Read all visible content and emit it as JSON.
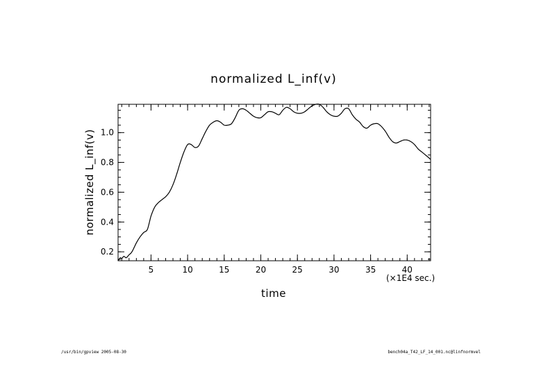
{
  "chart_data": {
    "type": "line",
    "title": "normalized L_inf(v)",
    "xlabel": "time",
    "ylabel": "normalized L_inf(v)",
    "x_unit_label": "(×1E4 sec.)",
    "xlim": [
      0.5,
      43.2
    ],
    "ylim": [
      0.14,
      1.19
    ],
    "x_ticks": [
      5,
      10,
      15,
      20,
      25,
      30,
      35,
      40
    ],
    "x_tick_labels": [
      "5",
      "10",
      "15",
      "20",
      "25",
      "30",
      "35",
      "40"
    ],
    "x_minor_step": 1,
    "y_ticks": [
      0.2,
      0.4,
      0.6,
      0.8,
      1.0
    ],
    "y_tick_labels": [
      "0.2",
      "0.4",
      "0.6",
      "0.8",
      "1.0"
    ],
    "y_minor_step": 0.05,
    "grid": false,
    "series": [
      {
        "x": [
          0.5,
          0.8,
          1.0,
          1.3,
          1.6,
          2.0,
          2.4,
          3.0,
          3.5,
          4.0,
          4.5,
          5.0,
          5.5,
          6.0,
          6.5,
          7.0,
          7.5,
          8.0,
          8.5,
          9.0,
          9.5,
          10.0,
          10.5,
          11.0,
          11.5,
          12.0,
          12.5,
          13.0,
          13.5,
          14.0,
          14.5,
          15.0,
          15.5,
          16.0,
          16.5,
          17.0,
          17.5,
          18.0,
          18.5,
          19.0,
          19.5,
          20.0,
          20.5,
          21.0,
          21.5,
          22.0,
          22.5,
          23.0,
          23.5,
          24.0,
          24.5,
          25.0,
          25.5,
          26.0,
          26.5,
          27.0,
          27.5,
          28.0,
          28.5,
          29.0,
          29.5,
          30.0,
          30.5,
          31.0,
          31.5,
          32.0,
          32.5,
          33.0,
          33.5,
          34.0,
          34.5,
          35.0,
          35.5,
          36.0,
          36.5,
          37.0,
          37.5,
          38.0,
          38.5,
          39.0,
          39.5,
          40.0,
          40.5,
          41.0,
          41.5,
          42.0,
          42.5,
          43.2
        ],
        "y": [
          0.14,
          0.16,
          0.155,
          0.17,
          0.16,
          0.18,
          0.2,
          0.26,
          0.3,
          0.33,
          0.35,
          0.44,
          0.5,
          0.53,
          0.55,
          0.57,
          0.6,
          0.65,
          0.72,
          0.8,
          0.87,
          0.92,
          0.92,
          0.9,
          0.91,
          0.96,
          1.01,
          1.05,
          1.07,
          1.08,
          1.07,
          1.05,
          1.05,
          1.06,
          1.1,
          1.15,
          1.16,
          1.15,
          1.13,
          1.11,
          1.1,
          1.1,
          1.12,
          1.14,
          1.14,
          1.13,
          1.12,
          1.15,
          1.17,
          1.16,
          1.14,
          1.13,
          1.13,
          1.14,
          1.16,
          1.18,
          1.19,
          1.19,
          1.17,
          1.14,
          1.12,
          1.11,
          1.11,
          1.13,
          1.16,
          1.16,
          1.12,
          1.09,
          1.07,
          1.04,
          1.03,
          1.05,
          1.06,
          1.06,
          1.04,
          1.01,
          0.97,
          0.94,
          0.93,
          0.94,
          0.95,
          0.95,
          0.94,
          0.92,
          0.89,
          0.87,
          0.85,
          0.82
        ]
      }
    ]
  },
  "footer": {
    "left": "/usr/bin/gpview  2005-08-30",
    "right": "bench04a_T42_LF_14_001.nc@linfnormvel"
  }
}
